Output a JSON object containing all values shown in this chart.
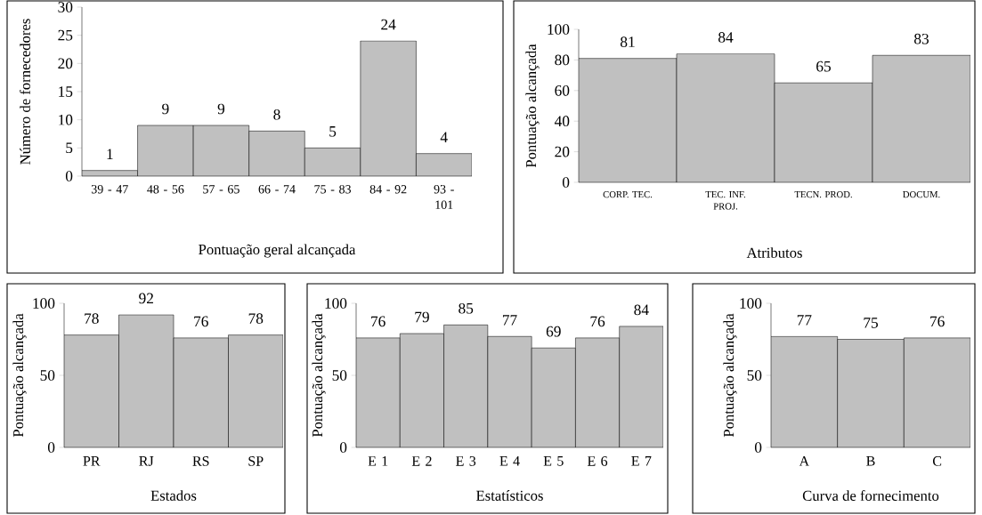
{
  "chart_data": [
    {
      "type": "bar",
      "ylabel": "Número de fornecedores",
      "xlabel": "Pontuação geral alcançada",
      "categories": [
        "39 - 47",
        "48 - 56",
        "57 - 65",
        "66 - 74",
        "75 - 83",
        "84 - 92",
        "93 - 101"
      ],
      "values": [
        1,
        9,
        9,
        8,
        5,
        24,
        4
      ],
      "color": "#c0c0c0",
      "ylim": [
        0,
        30
      ],
      "yticks": [
        0,
        5,
        10,
        15,
        20,
        25,
        30
      ],
      "data_labels": true
    },
    {
      "type": "bar",
      "ylabel": "Pontuação alcançada",
      "xlabel": "Atributos",
      "categories": [
        "CORP. TEC.",
        "TEC. INF. PROJ.",
        "TECN. PROD.",
        "DOCUM."
      ],
      "values": [
        81,
        84,
        65,
        83
      ],
      "color": "#c0c0c0",
      "ylim": [
        0,
        100
      ],
      "yticks": [
        0,
        20,
        40,
        60,
        80,
        100
      ],
      "data_labels": true
    },
    {
      "type": "bar",
      "ylabel": "Pontuação alcançada",
      "xlabel": "Estados",
      "categories": [
        "PR",
        "RJ",
        "RS",
        "SP"
      ],
      "values": [
        78,
        92,
        76,
        78
      ],
      "color": "#c0c0c0",
      "ylim": [
        0,
        100
      ],
      "yticks": [
        0,
        50,
        100
      ],
      "data_labels": true
    },
    {
      "type": "bar",
      "ylabel": "Pontuação alcançada",
      "xlabel": "Estatísticos",
      "categories": [
        "E 1",
        "E 2",
        "E 3",
        "E 4",
        "E 5",
        "E 6",
        "E 7"
      ],
      "values": [
        76,
        79,
        85,
        77,
        69,
        76,
        84
      ],
      "color": "#c0c0c0",
      "ylim": [
        0,
        100
      ],
      "yticks": [
        0,
        50,
        100
      ],
      "data_labels": true
    },
    {
      "type": "bar",
      "ylabel": "Pontuação alcançada",
      "xlabel": "Curva de fornecimento",
      "categories": [
        "A",
        "B",
        "C"
      ],
      "values": [
        77,
        75,
        76
      ],
      "color": "#c0c0c0",
      "ylim": [
        0,
        100
      ],
      "yticks": [
        0,
        50,
        100
      ],
      "data_labels": true
    }
  ]
}
